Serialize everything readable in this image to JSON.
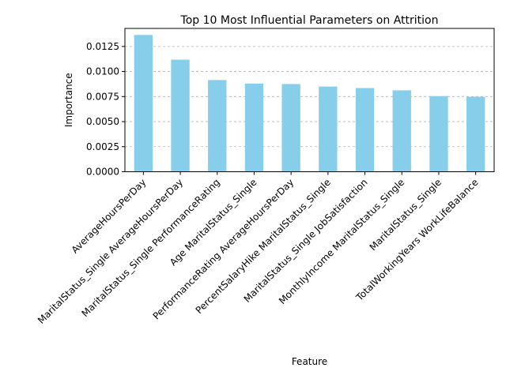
{
  "chart_data": {
    "type": "bar",
    "title": "Top 10 Most Influential Parameters on Attrition",
    "xlabel": "Feature",
    "ylabel": "Importance",
    "categories": [
      "AverageHoursPerDay",
      "MaritalStatus_Single AverageHoursPerDay",
      "MaritalStatus_Single PerformanceRating",
      "Age MaritalStatus_Single",
      "PerformanceRating AverageHoursPerDay",
      "PercentSalaryHike MaritalStatus_Single",
      "MaritalStatus_Single JobSatisfaction",
      "MonthlyIncome MaritalStatus_Single",
      "MaritalStatus_Single",
      "TotalWorkingYears WorkLifeBalance"
    ],
    "values": [
      0.01365,
      0.01118,
      0.00915,
      0.0088,
      0.00875,
      0.0085,
      0.00835,
      0.00812,
      0.00755,
      0.00748
    ],
    "ylim": [
      0,
      0.0143
    ],
    "yticks": [
      "0.0000",
      "0.0025",
      "0.0050",
      "0.0075",
      "0.0100",
      "0.0125"
    ],
    "ytick_values": [
      0,
      0.0025,
      0.005,
      0.0075,
      0.01,
      0.0125
    ],
    "grid": "y-dashed",
    "bar_color": "#87CEEB"
  }
}
